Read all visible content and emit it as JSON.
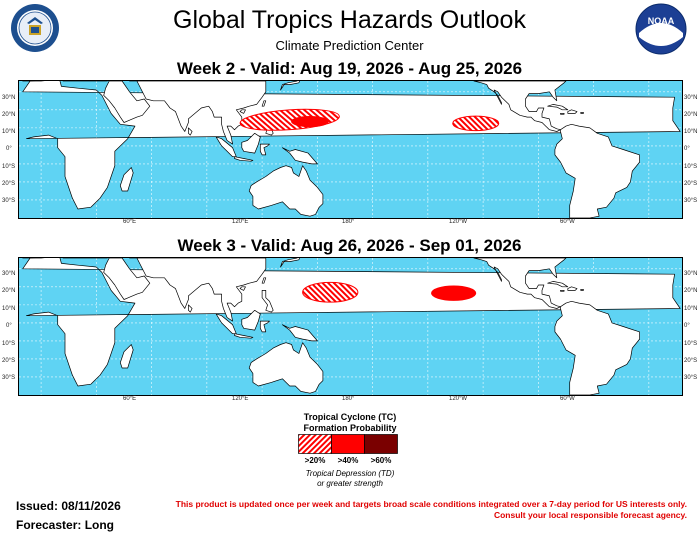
{
  "header": {
    "title": "Global Tropics Hazards Outlook",
    "subtitle": "Climate Prediction Center"
  },
  "logos": {
    "left": "doc-seal",
    "right": "noaa-logo",
    "noaa_text": "NOAA"
  },
  "maps": [
    {
      "title": "Week 2 - Valid: Aug 19, 2026 - Aug 25, 2026",
      "hazards": [
        {
          "level": ">20%",
          "region": "South China Sea / Philippines"
        },
        {
          "level": ">40%",
          "region": "Western North Pacific"
        },
        {
          "level": ">20%",
          "region": "Eastern North Pacific"
        }
      ]
    },
    {
      "title": "Week 3 - Valid: Aug 26, 2026 - Sep 01, 2026",
      "hazards": [
        {
          "level": ">20%",
          "region": "Western North Pacific"
        },
        {
          "level": ">40%",
          "region": "Central / Eastern North Pacific"
        }
      ]
    }
  ],
  "axes": {
    "lat_labels": [
      "30°N",
      "20°N",
      "10°N",
      "0°",
      "10°S",
      "20°S",
      "30°S"
    ],
    "lon_labels": [
      "60°E",
      "120°E",
      "180°",
      "120°W",
      "60°W"
    ]
  },
  "legend": {
    "title_line1": "Tropical Cyclone (TC)",
    "title_line2": "Formation Probability",
    "items": [
      {
        "label": ">20%",
        "color": "#ff0000",
        "pattern": "hatched"
      },
      {
        "label": ">40%",
        "color": "#ff0000",
        "pattern": "solid"
      },
      {
        "label": ">60%",
        "color": "#7a0000",
        "pattern": "solid"
      }
    ],
    "note_line1": "Tropical Depression (TD)",
    "note_line2": "or greater strength"
  },
  "footer": {
    "issued": "Issued: 08/11/2026",
    "forecaster": "Forecaster: Long",
    "disclaimer_line1": "This product is updated once per week and targets broad scale conditions integrated over a 7-day period for US interests only.",
    "disclaimer_line2": "Consult your local responsible forecast agency."
  },
  "colors": {
    "ocean": "#5fd3f3",
    "land": "#ffffff",
    "hazard": "#ff0000",
    "hazard_high": "#7a0000",
    "disclaimer": "#e00000"
  }
}
